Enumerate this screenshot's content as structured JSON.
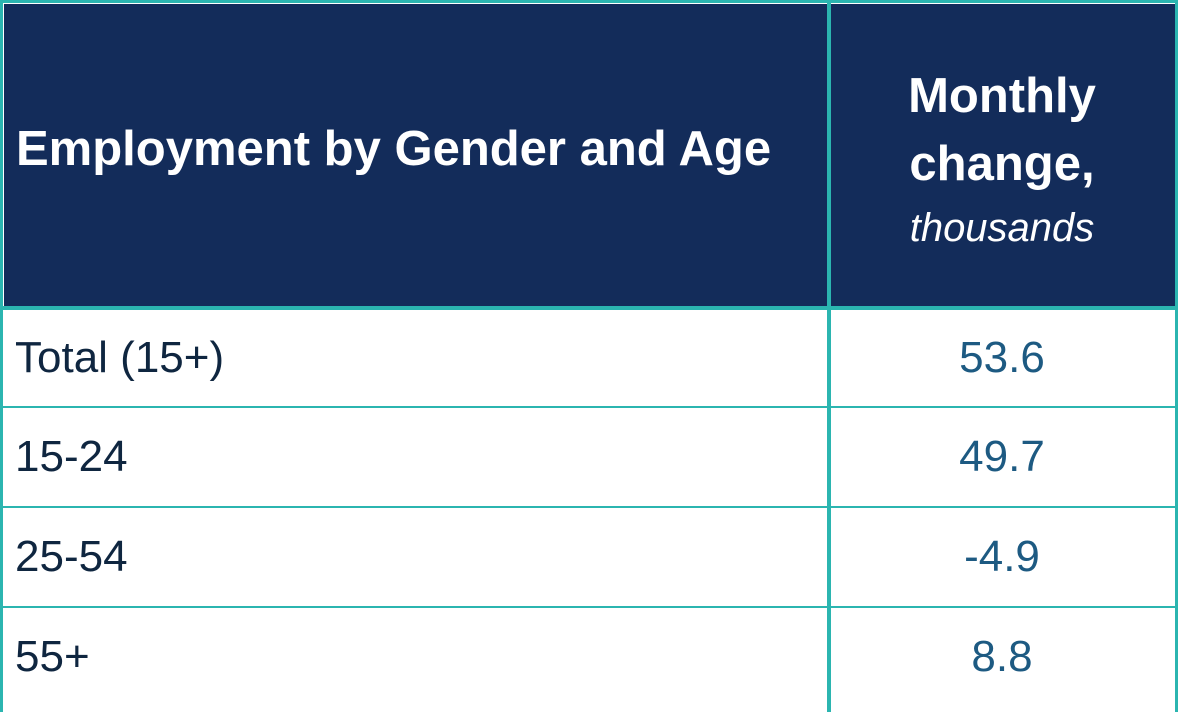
{
  "table": {
    "header": {
      "label": "Employment by Gender and Age",
      "value_title": "Monthly change,",
      "value_unit": "thousands"
    },
    "rows": [
      [
        "Total (15+)",
        53.6
      ],
      [
        "15-24",
        49.7
      ],
      [
        "25-54",
        -4.9
      ],
      [
        "55+",
        8.8
      ]
    ]
  }
}
